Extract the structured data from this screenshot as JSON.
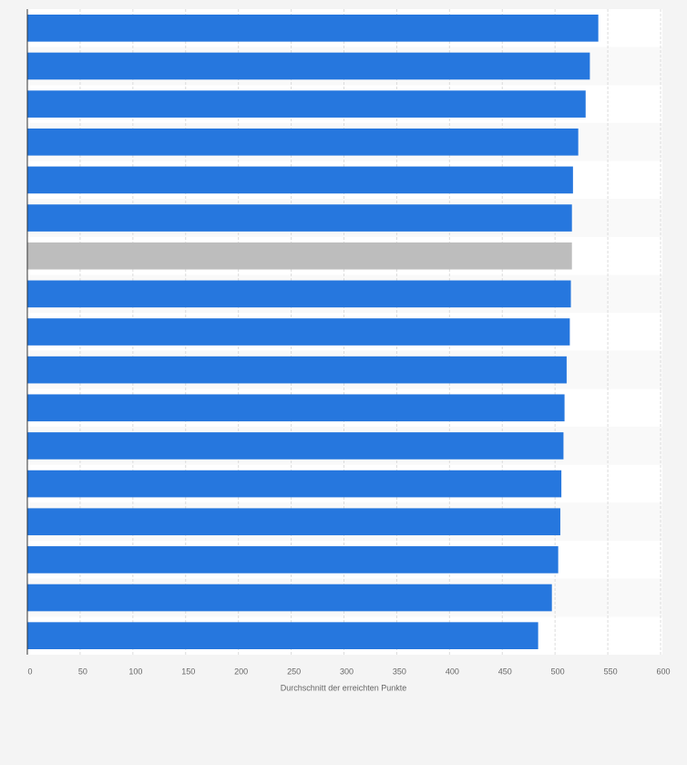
{
  "chart_data": {
    "type": "bar",
    "orientation": "horizontal",
    "xlabel": "Durchschnitt der erreichten Punkte",
    "categories": [
      null,
      null,
      null,
      null,
      null,
      null,
      null,
      null,
      null,
      null,
      null,
      null,
      null,
      null,
      null,
      null,
      null
    ],
    "values": [
      541,
      533,
      529,
      522,
      517,
      516,
      516,
      515,
      514,
      511,
      509,
      508,
      506,
      505,
      503,
      497,
      484
    ],
    "colors": [
      "#2677de",
      "#2677de",
      "#2677de",
      "#2677de",
      "#2677de",
      "#2677de",
      "#bdbdbd",
      "#2677de",
      "#2677de",
      "#2677de",
      "#2677de",
      "#2677de",
      "#2677de",
      "#2677de",
      "#2677de",
      "#2677de",
      "#2677de"
    ],
    "xlim": [
      0,
      600
    ],
    "xticks": [
      0,
      50,
      100,
      150,
      200,
      250,
      300,
      350,
      400,
      450,
      500,
      550,
      600
    ],
    "grid": true
  }
}
